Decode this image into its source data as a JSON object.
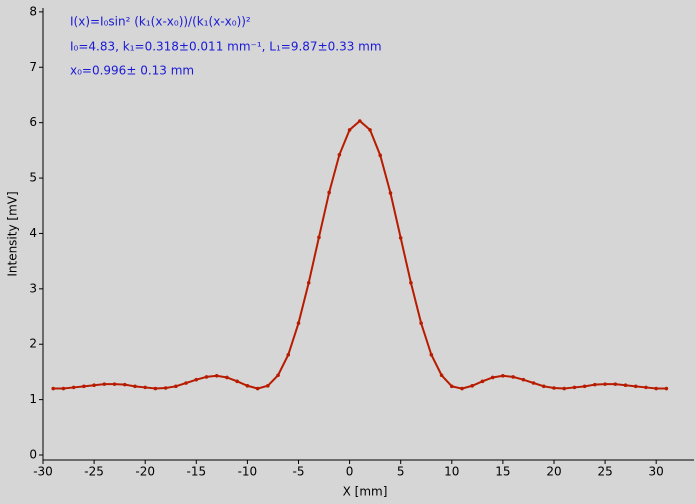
{
  "chart_data": {
    "type": "scatter",
    "annotations": [
      "I(x)=I₀sin² (k₁(x-x₀))/(k₁(x-x₀))²",
      "I₀=4.83,  k₁=0.318±0.011 mm⁻¹,   L₁=9.87±0.33 mm",
      "x₀=0.996±  0.13 mm"
    ],
    "xlabel": "X [mm]",
    "ylabel": "Intensity [mV]",
    "xlim": [
      -30,
      33.7
    ],
    "ylim": [
      -0.09,
      8.07
    ],
    "xticks": [
      -30,
      -25,
      -20,
      -15,
      -10,
      -5,
      0,
      5,
      10,
      15,
      20,
      25,
      30
    ],
    "yticks": [
      0,
      1,
      2,
      3,
      4,
      5,
      6,
      7,
      8
    ],
    "color": "#b81c00",
    "x": [
      -29,
      -28,
      -27,
      -26,
      -25,
      -24,
      -23,
      -22,
      -21,
      -20,
      -19,
      -18,
      -17,
      -16,
      -15,
      -14,
      -13,
      -12,
      -11,
      -10,
      -9,
      -8,
      -7,
      -6,
      -5,
      -4,
      -3,
      -2,
      -1,
      0,
      1,
      2,
      3,
      4,
      5,
      6,
      7,
      8,
      9,
      10,
      11,
      12,
      13,
      14,
      15,
      16,
      17,
      18,
      19,
      20,
      21,
      22,
      23,
      24,
      25,
      26,
      27,
      28,
      29,
      30,
      31
    ],
    "values": [
      1.2,
      1.2,
      1.22,
      1.24,
      1.26,
      1.28,
      1.28,
      1.27,
      1.24,
      1.22,
      1.2,
      1.21,
      1.24,
      1.3,
      1.36,
      1.41,
      1.43,
      1.4,
      1.33,
      1.25,
      1.2,
      1.25,
      1.44,
      1.81,
      2.38,
      3.11,
      3.93,
      4.74,
      5.42,
      5.87,
      6.03,
      5.87,
      5.41,
      4.73,
      3.92,
      3.11,
      2.38,
      1.81,
      1.44,
      1.24,
      1.2,
      1.25,
      1.33,
      1.4,
      1.43,
      1.41,
      1.36,
      1.3,
      1.24,
      1.21,
      1.2,
      1.22,
      1.24,
      1.27,
      1.28,
      1.28,
      1.26,
      1.24,
      1.22,
      1.2,
      1.2
    ]
  }
}
